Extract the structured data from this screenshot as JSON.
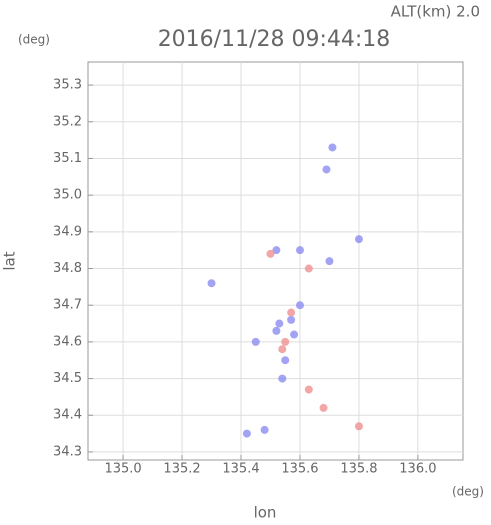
{
  "chart_data": {
    "type": "scatter",
    "title": "2016/11/28 09:44:18",
    "subtitle": "ALT(km) 2.0",
    "y_unit": "(deg)",
    "x_unit": "(deg)",
    "xlabel": "lon",
    "ylabel": "lat",
    "xlim": [
      134.881,
      136.153
    ],
    "ylim": [
      34.278,
      35.363
    ],
    "xticks": [
      {
        "value": 135,
        "label": "135.0"
      },
      135.2,
      135.4,
      135.6,
      135.8,
      {
        "value": 136,
        "label": "136.0"
      }
    ],
    "yticks": [
      34.3,
      34.4,
      34.5,
      34.6,
      34.7,
      34.8,
      34.9,
      {
        "value": 35,
        "label": "35.0"
      },
      35.1,
      35.2,
      35.3
    ],
    "grid": true,
    "series": [
      {
        "color": "#8c8cf0",
        "x": [
          135.69,
          135.71,
          135.52,
          135.6,
          135.7,
          135.53,
          135.58,
          135.55,
          135.52,
          135.6,
          135.42,
          135.48,
          135.8,
          135.3,
          135.45,
          135.57,
          135.54
        ],
        "values": [
          35.07,
          35.13,
          34.85,
          34.85,
          34.82,
          34.65,
          34.62,
          34.55,
          34.63,
          34.7,
          34.35,
          34.36,
          34.88,
          34.76,
          34.6,
          34.66,
          34.5
        ]
      },
      {
        "color": "#f09090",
        "x": [
          135.63,
          135.68,
          135.63,
          135.8,
          135.55,
          135.5,
          135.57,
          135.54
        ],
        "values": [
          34.8,
          34.42,
          34.47,
          34.37,
          34.6,
          34.84,
          34.68,
          34.58
        ]
      }
    ]
  }
}
